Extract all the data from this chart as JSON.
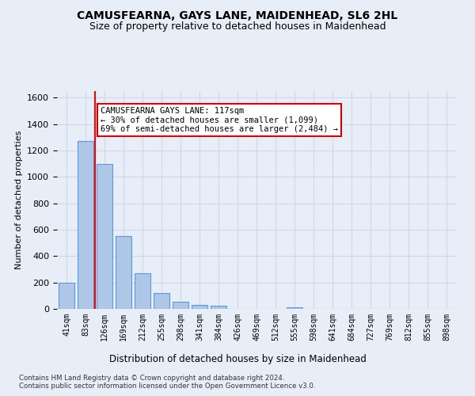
{
  "title": "CAMUSFEARNA, GAYS LANE, MAIDENHEAD, SL6 2HL",
  "subtitle": "Size of property relative to detached houses in Maidenhead",
  "xlabel": "Distribution of detached houses by size in Maidenhead",
  "ylabel": "Number of detached properties",
  "footer_line1": "Contains HM Land Registry data © Crown copyright and database right 2024.",
  "footer_line2": "Contains public sector information licensed under the Open Government Licence v3.0.",
  "categories": [
    "41sqm",
    "83sqm",
    "126sqm",
    "169sqm",
    "212sqm",
    "255sqm",
    "298sqm",
    "341sqm",
    "384sqm",
    "426sqm",
    "469sqm",
    "512sqm",
    "555sqm",
    "598sqm",
    "641sqm",
    "684sqm",
    "727sqm",
    "769sqm",
    "812sqm",
    "855sqm",
    "898sqm"
  ],
  "values": [
    198,
    1270,
    1100,
    555,
    270,
    120,
    55,
    30,
    22,
    0,
    0,
    0,
    15,
    0,
    0,
    0,
    0,
    0,
    0,
    0,
    0
  ],
  "bar_color": "#aec6e8",
  "bar_edge_color": "#5b9bd5",
  "ylim": [
    0,
    1650
  ],
  "yticks": [
    0,
    200,
    400,
    600,
    800,
    1000,
    1200,
    1400,
    1600
  ],
  "red_line_x": 1.5,
  "annotation_text": "CAMUSFEARNA GAYS LANE: 117sqm\n← 30% of detached houses are smaller (1,099)\n69% of semi-detached houses are larger (2,484) →",
  "annotation_box_color": "#ffffff",
  "annotation_box_edge": "#cc0000",
  "grid_color": "#d0d8e8",
  "bg_color": "#e8eef8",
  "title_fontsize": 10,
  "subtitle_fontsize": 9
}
